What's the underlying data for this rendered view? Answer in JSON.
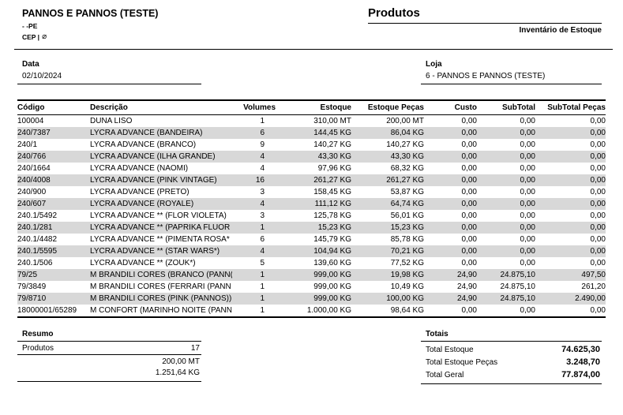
{
  "header": {
    "company_name": "PANNOS E PANNOS (TESTE)",
    "city_state": "- -PE",
    "cep_label": "CEP |",
    "phone_icon_glyph": "⌀",
    "report_title": "Produtos",
    "report_subtitle": "Inventário de Estoque"
  },
  "filters": {
    "date_label": "Data",
    "date_value": "02/10/2024",
    "store_label": "Loja",
    "store_value": "6 - PANNOS E PANNOS (TESTE)"
  },
  "table": {
    "columns": [
      "Código",
      "Descrição",
      "Volumes",
      "Estoque",
      "Estoque Peças",
      "Custo",
      "SubTotal",
      "SubTotal Peças"
    ],
    "rows": [
      {
        "code": "100004",
        "description": "DUNA LISO",
        "volumes": "1",
        "stock": "310,00 MT",
        "stock_pieces": "200,00 MT",
        "cost": "0,00",
        "subtotal": "0,00",
        "subtotal_pieces": "0,00"
      },
      {
        "code": "240/7387",
        "description": "LYCRA ADVANCE (BANDEIRA)",
        "volumes": "6",
        "stock": "144,45 KG",
        "stock_pieces": "86,04 KG",
        "cost": "0,00",
        "subtotal": "0,00",
        "subtotal_pieces": "0,00"
      },
      {
        "code": "240/1",
        "description": "LYCRA ADVANCE (BRANCO)",
        "volumes": "9",
        "stock": "140,27 KG",
        "stock_pieces": "140,27 KG",
        "cost": "0,00",
        "subtotal": "0,00",
        "subtotal_pieces": "0,00"
      },
      {
        "code": "240/766",
        "description": "LYCRA ADVANCE (ILHA GRANDE)",
        "volumes": "4",
        "stock": "43,30 KG",
        "stock_pieces": "43,30 KG",
        "cost": "0,00",
        "subtotal": "0,00",
        "subtotal_pieces": "0,00"
      },
      {
        "code": "240/1664",
        "description": "LYCRA ADVANCE (NAOMI)",
        "volumes": "4",
        "stock": "97,96 KG",
        "stock_pieces": "68,32 KG",
        "cost": "0,00",
        "subtotal": "0,00",
        "subtotal_pieces": "0,00"
      },
      {
        "code": "240/4008",
        "description": "LYCRA ADVANCE (PINK VINTAGE)",
        "volumes": "16",
        "stock": "261,27 KG",
        "stock_pieces": "261,27 KG",
        "cost": "0,00",
        "subtotal": "0,00",
        "subtotal_pieces": "0,00"
      },
      {
        "code": "240/900",
        "description": "LYCRA ADVANCE (PRETO)",
        "volumes": "3",
        "stock": "158,45 KG",
        "stock_pieces": "53,87 KG",
        "cost": "0,00",
        "subtotal": "0,00",
        "subtotal_pieces": "0,00"
      },
      {
        "code": "240/607",
        "description": "LYCRA ADVANCE (ROYALE)",
        "volumes": "4",
        "stock": "111,12 KG",
        "stock_pieces": "64,74 KG",
        "cost": "0,00",
        "subtotal": "0,00",
        "subtotal_pieces": "0,00"
      },
      {
        "code": "240.1/5492",
        "description": "LYCRA ADVANCE ** (FLOR VIOLETA)",
        "volumes": "3",
        "stock": "125,78 KG",
        "stock_pieces": "56,01 KG",
        "cost": "0,00",
        "subtotal": "0,00",
        "subtotal_pieces": "0,00"
      },
      {
        "code": "240.1/281",
        "description": "LYCRA ADVANCE ** (PAPRIKA FLUOR",
        "volumes": "1",
        "stock": "15,23 KG",
        "stock_pieces": "15,23 KG",
        "cost": "0,00",
        "subtotal": "0,00",
        "subtotal_pieces": "0,00"
      },
      {
        "code": "240.1/4482",
        "description": "LYCRA ADVANCE ** (PIMENTA ROSA*",
        "volumes": "6",
        "stock": "145,79 KG",
        "stock_pieces": "85,78 KG",
        "cost": "0,00",
        "subtotal": "0,00",
        "subtotal_pieces": "0,00"
      },
      {
        "code": "240.1/5595",
        "description": "LYCRA ADVANCE ** (STAR WARS*)",
        "volumes": "4",
        "stock": "104,94 KG",
        "stock_pieces": "70,21 KG",
        "cost": "0,00",
        "subtotal": "0,00",
        "subtotal_pieces": "0,00"
      },
      {
        "code": "240.1/506",
        "description": "LYCRA ADVANCE ** (ZOUK*)",
        "volumes": "5",
        "stock": "139,60 KG",
        "stock_pieces": "77,52 KG",
        "cost": "0,00",
        "subtotal": "0,00",
        "subtotal_pieces": "0,00"
      },
      {
        "code": "79/25",
        "description": "M BRANDILI CORES (BRANCO (PANN(",
        "volumes": "1",
        "stock": "999,00 KG",
        "stock_pieces": "19,98 KG",
        "cost": "24,90",
        "subtotal": "24.875,10",
        "subtotal_pieces": "497,50"
      },
      {
        "code": "79/3849",
        "description": "M BRANDILI CORES (FERRARI (PANN",
        "volumes": "1",
        "stock": "999,00 KG",
        "stock_pieces": "10,49 KG",
        "cost": "24,90",
        "subtotal": "24.875,10",
        "subtotal_pieces": "261,20"
      },
      {
        "code": "79/8710",
        "description": "M BRANDILI CORES (PINK (PANNOS))",
        "volumes": "1",
        "stock": "999,00 KG",
        "stock_pieces": "100,00 KG",
        "cost": "24,90",
        "subtotal": "24.875,10",
        "subtotal_pieces": "2.490,00"
      },
      {
        "code": "18000001/65289",
        "description": "M CONFORT (MARINHO NOITE (PANN",
        "volumes": "1",
        "stock": "1.000,00 KG",
        "stock_pieces": "98,64 KG",
        "cost": "0,00",
        "subtotal": "0,00",
        "subtotal_pieces": "0,00"
      }
    ]
  },
  "summary": {
    "title": "Resumo",
    "products_label": "Produtos",
    "products_count": "17",
    "total_mt": "200,00 MT",
    "total_kg": "1.251,64 KG"
  },
  "totals": {
    "title": "Totais",
    "rows": [
      {
        "label": "Total Estoque",
        "value": "74.625,30"
      },
      {
        "label": "Total Estoque Peças",
        "value": "3.248,70"
      },
      {
        "label": "Total Geral",
        "value": "77.874,00"
      }
    ]
  }
}
